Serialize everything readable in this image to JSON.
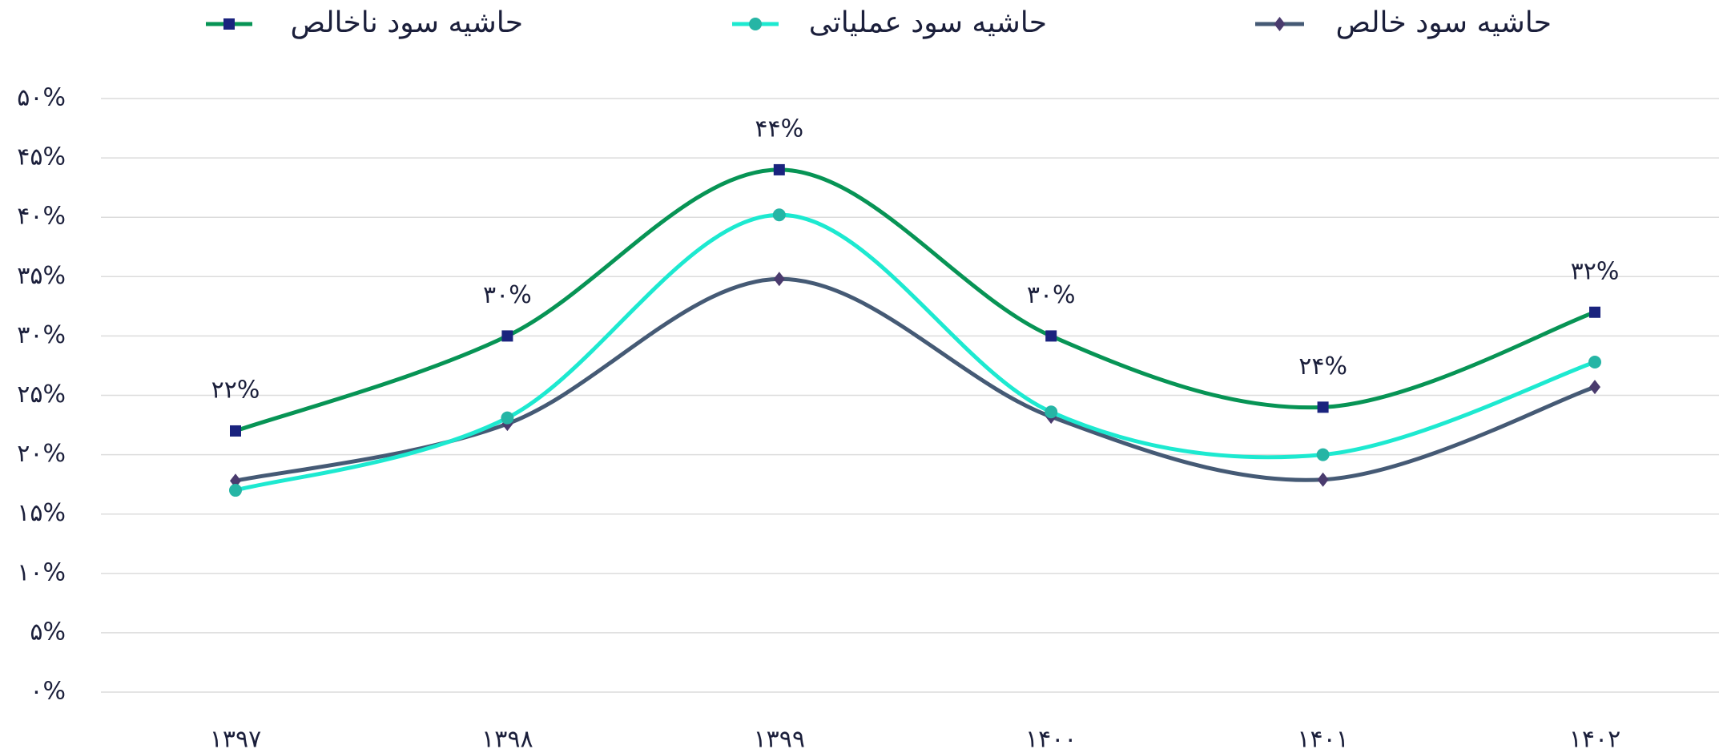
{
  "chart_data": {
    "type": "line",
    "categories": [
      "۱۳۹۷",
      "۱۳۹۸",
      "۱۳۹۹",
      "۱۴۰۰",
      "۱۴۰۱",
      "۱۴۰۲"
    ],
    "series": [
      {
        "name": "حاشیه سود ناخالص",
        "color": "#079455",
        "marker_color": "#1a237e",
        "marker": "square",
        "values": [
          22,
          30,
          44,
          30,
          24,
          32
        ],
        "value_labels": [
          "۲۲%",
          "۳۰%",
          "۴۴%",
          "۳۰%",
          "۲۴%",
          "۳۲%"
        ]
      },
      {
        "name": "حاشیه سود عملیاتی",
        "color": "#1de9d0",
        "marker_color": "#26b5a5",
        "marker": "circle",
        "values": [
          17.0,
          23.1,
          40.2,
          23.6,
          20.0,
          27.8
        ]
      },
      {
        "name": "حاشیه سود خالص",
        "color": "#455a75",
        "marker_color": "#4a3b6e",
        "marker": "diamond",
        "values": [
          17.8,
          22.6,
          34.8,
          23.2,
          17.9,
          25.7
        ]
      }
    ],
    "ylim": [
      0,
      50
    ],
    "yticks": [
      {
        "value": 0,
        "label": "۰%"
      },
      {
        "value": 5,
        "label": "۵%"
      },
      {
        "value": 10,
        "label": "۱۰%"
      },
      {
        "value": 15,
        "label": "۱۵%"
      },
      {
        "value": 20,
        "label": "۲۰%"
      },
      {
        "value": 25,
        "label": "۲۵%"
      },
      {
        "value": 30,
        "label": "۳۰%"
      },
      {
        "value": 35,
        "label": "۳۵%"
      },
      {
        "value": 40,
        "label": "۴۰%"
      },
      {
        "value": 45,
        "label": "۴۵%"
      },
      {
        "value": 50,
        "label": "۵۰%"
      }
    ],
    "grid": true,
    "smooth": true,
    "legend": "top"
  }
}
